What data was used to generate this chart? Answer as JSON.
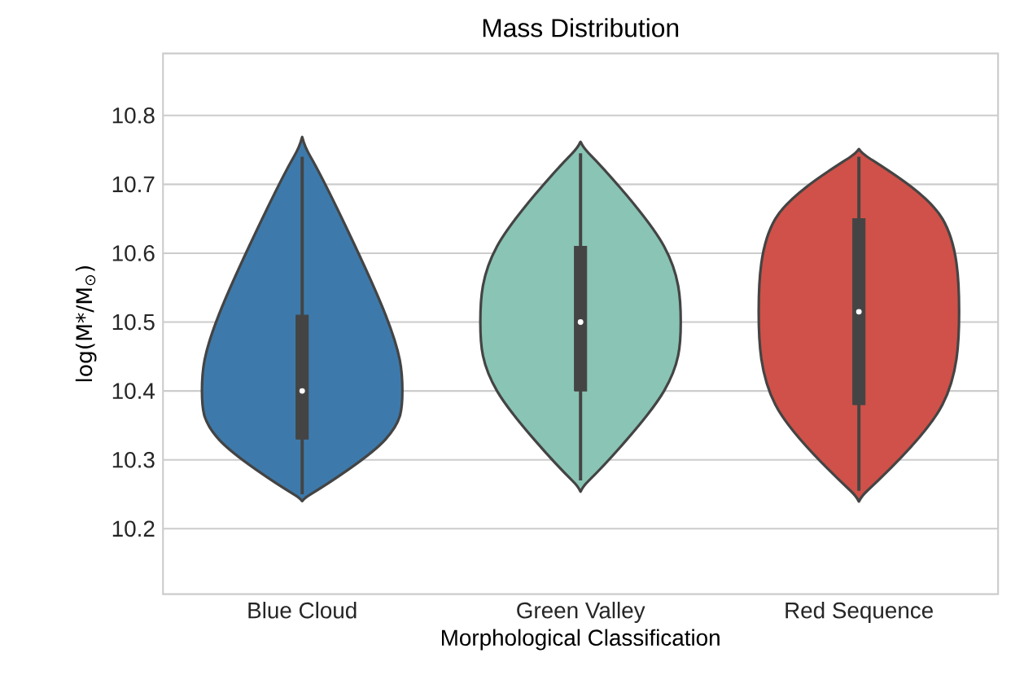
{
  "chart_data": {
    "type": "box",
    "title": "Mass Distribution",
    "xlabel": "Morphological Classification",
    "ylabel": "log(M*/M$_{⊙}$)",
    "categories": [
      "Blue Cloud",
      "Green Valley",
      "Red Sequence"
    ],
    "colors": [
      "#444444",
      "#444444",
      "#444444"
    ],
    "boxes": [
      {
        "low": 10.25,
        "q1": 10.33,
        "median": 10.4,
        "q3": 10.51,
        "high": 10.74
      },
      {
        "low": 10.27,
        "q1": 10.4,
        "median": 10.5,
        "q3": 10.61,
        "high": 10.745
      },
      {
        "low": 10.255,
        "q1": 10.38,
        "median": 10.515,
        "q3": 10.65,
        "high": 10.74
      }
    ],
    "ylim": [
      10.105,
      10.89
    ],
    "yticks": [
      10.2,
      10.3,
      10.4,
      10.5,
      10.6,
      10.7,
      10.8
    ],
    "grid": "y"
  }
}
